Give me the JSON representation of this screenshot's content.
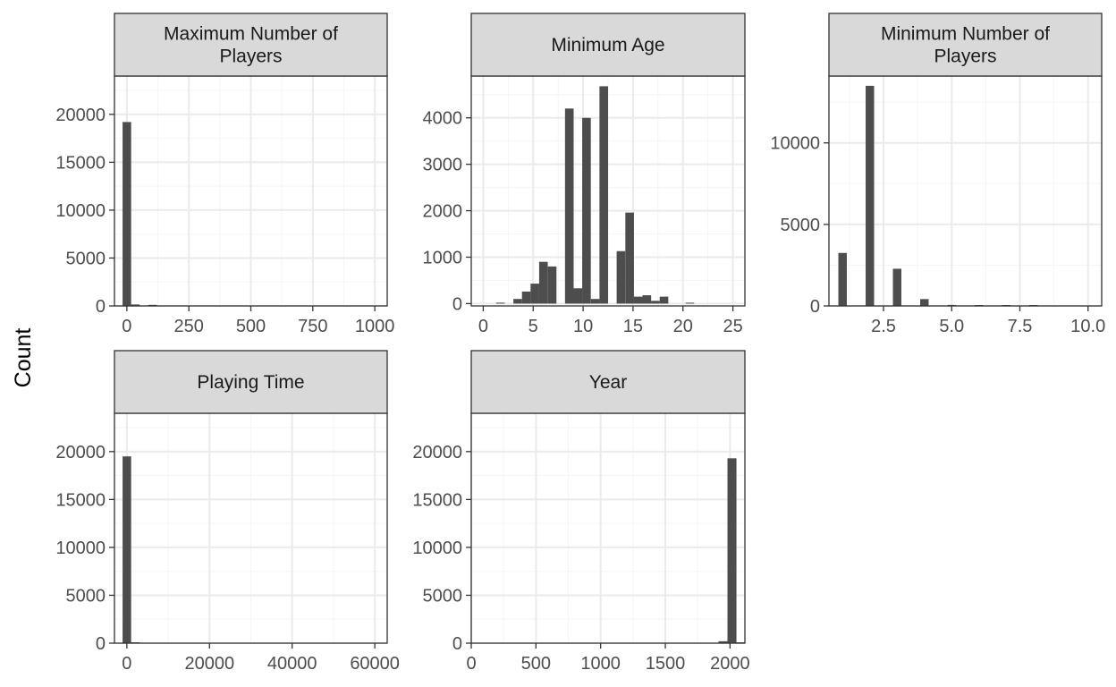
{
  "figure": {
    "ylabel": "Count",
    "colors": {
      "bar": "#4d4d4d",
      "strip_fill": "#d9d9d9",
      "panel_border": "#333333",
      "grid_major": "#ebebeb",
      "grid_minor": "#f5f5f5",
      "background": "#ffffff"
    }
  },
  "chart_data": [
    {
      "type": "bar",
      "title": "Maximum Number of Players",
      "title_lines": [
        "Maximum Number of",
        "Players"
      ],
      "xlim": [
        -50,
        1050
      ],
      "ylim": [
        0,
        24000
      ],
      "x_ticks": [
        0,
        250,
        500,
        750,
        1000
      ],
      "x_tick_labels": [
        "0",
        "250",
        "500",
        "750",
        "1000"
      ],
      "y_ticks": [
        0,
        5000,
        10000,
        15000,
        20000
      ],
      "y_tick_labels": [
        "0",
        "5000",
        "10000",
        "15000",
        "20000"
      ],
      "bin_width": 34.5,
      "bins": [
        {
          "x": 0,
          "count": 19200
        },
        {
          "x": 34.5,
          "count": 150
        },
        {
          "x": 103.5,
          "count": 110
        }
      ]
    },
    {
      "type": "bar",
      "title": "Minimum Age",
      "title_lines": [
        "Minimum Age"
      ],
      "xlim": [
        -1.2,
        26.2
      ],
      "ylim": [
        -50,
        4900
      ],
      "x_ticks": [
        0,
        5,
        10,
        15,
        20,
        25
      ],
      "x_tick_labels": [
        "0",
        "5",
        "10",
        "15",
        "20",
        "25"
      ],
      "y_ticks": [
        0,
        1000,
        2000,
        3000,
        4000
      ],
      "y_tick_labels": [
        "0",
        "1000",
        "2000",
        "3000",
        "4000"
      ],
      "bin_width": 0.862,
      "bins": [
        {
          "x": 1.72,
          "count": 20
        },
        {
          "x": 3.45,
          "count": 100
        },
        {
          "x": 4.31,
          "count": 260
        },
        {
          "x": 5.17,
          "count": 430
        },
        {
          "x": 6.03,
          "count": 900
        },
        {
          "x": 6.9,
          "count": 800
        },
        {
          "x": 8.62,
          "count": 4200
        },
        {
          "x": 9.48,
          "count": 330
        },
        {
          "x": 10.34,
          "count": 4000
        },
        {
          "x": 11.21,
          "count": 100
        },
        {
          "x": 12.07,
          "count": 4680
        },
        {
          "x": 13.79,
          "count": 1130
        },
        {
          "x": 14.66,
          "count": 1960
        },
        {
          "x": 15.52,
          "count": 150
        },
        {
          "x": 16.38,
          "count": 180
        },
        {
          "x": 17.24,
          "count": 60
        },
        {
          "x": 18.1,
          "count": 150
        },
        {
          "x": 20.69,
          "count": 10
        }
      ]
    },
    {
      "type": "bar",
      "title": "Minimum Number of Players",
      "title_lines": [
        "Minimum Number of",
        "Players"
      ],
      "xlim": [
        0.5,
        10.5
      ],
      "ylim": [
        0,
        14100
      ],
      "x_ticks": [
        2.5,
        5.0,
        7.5,
        10.0
      ],
      "x_tick_labels": [
        "2.5",
        "5.0",
        "7.5",
        "10.0"
      ],
      "y_ticks": [
        0,
        5000,
        10000
      ],
      "y_tick_labels": [
        "0",
        "5000",
        "10000"
      ],
      "bin_width": 0.31,
      "bins": [
        {
          "x": 1,
          "count": 3250
        },
        {
          "x": 2,
          "count": 13500
        },
        {
          "x": 3,
          "count": 2280
        },
        {
          "x": 4,
          "count": 420
        },
        {
          "x": 5,
          "count": 60
        },
        {
          "x": 6,
          "count": 30
        },
        {
          "x": 7,
          "count": 10
        },
        {
          "x": 8,
          "count": 20
        }
      ]
    },
    {
      "type": "bar",
      "title": "Playing Time",
      "title_lines": [
        "Playing Time"
      ],
      "xlim": [
        -3000,
        63000
      ],
      "ylim": [
        0,
        24000
      ],
      "x_ticks": [
        0,
        20000,
        40000,
        60000
      ],
      "x_tick_labels": [
        "0",
        "20000",
        "40000",
        "60000"
      ],
      "y_ticks": [
        0,
        5000,
        10000,
        15000,
        20000
      ],
      "y_tick_labels": [
        "0",
        "5000",
        "10000",
        "15000",
        "20000"
      ],
      "bin_width": 2068,
      "bins": [
        {
          "x": 0,
          "count": 19500
        },
        {
          "x": 2068,
          "count": 60
        }
      ]
    },
    {
      "type": "bar",
      "title": "Year",
      "title_lines": [
        "Year"
      ],
      "xlim": [
        0,
        2115
      ],
      "ylim": [
        0,
        24000
      ],
      "x_ticks": [
        0,
        500,
        1000,
        1500,
        2000
      ],
      "x_tick_labels": [
        "0",
        "500",
        "1000",
        "1500",
        "2000"
      ],
      "y_ticks": [
        0,
        5000,
        10000,
        15000,
        20000
      ],
      "y_tick_labels": [
        "0",
        "5000",
        "10000",
        "15000",
        "20000"
      ],
      "bin_width": 69.5,
      "bins": [
        {
          "x": 1946,
          "count": 200
        },
        {
          "x": 2015,
          "count": 19300
        },
        {
          "x": 2084,
          "count": 80
        }
      ]
    }
  ]
}
